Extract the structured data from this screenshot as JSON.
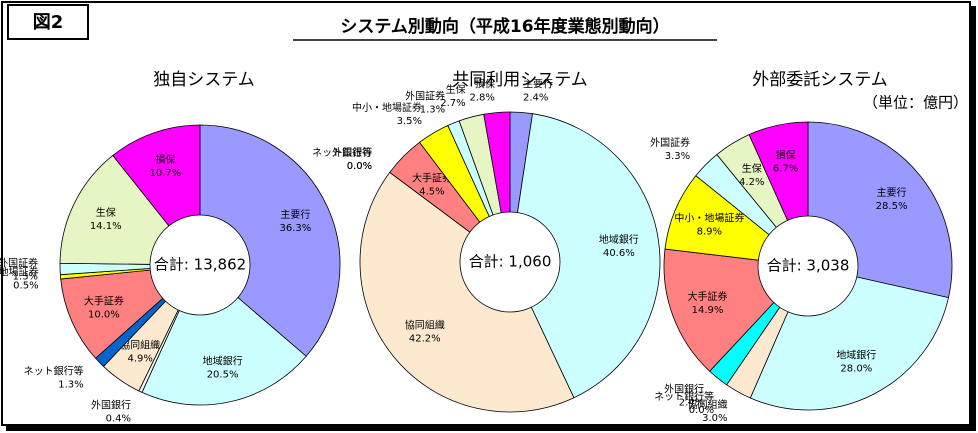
{
  "figure_label": "図2",
  "title": "システム別動向（平成16年度業態別動向）",
  "unit": "（単位：億円）",
  "chart_data": [
    {
      "type": "donut",
      "title": "独自システム",
      "center_label": "合計: 13,862",
      "categories": [
        "主要行",
        "地域銀行",
        "外国銀行",
        "協同組織",
        "ネット銀行等",
        "大手証券",
        "中小・地場証券",
        "外国証券",
        "生保",
        "損保"
      ],
      "values": [
        36.3,
        20.5,
        0.4,
        4.9,
        1.3,
        10.0,
        0.5,
        1.3,
        14.1,
        10.7
      ],
      "value_labels": [
        "36.3%",
        "20.5%",
        "0.4%",
        "4.9%",
        "1.3%",
        "10.0%",
        "0.5%",
        "1.3%",
        "14.1%",
        "10.7%"
      ],
      "colors": [
        "#9999ff",
        "#ccffff",
        "#f4f4f4",
        "#fde9d0",
        "#0066cc",
        "#ff8080",
        "#ffff00",
        "#ccffff",
        "#e6f5c4",
        "#ff00ff"
      ]
    },
    {
      "type": "donut",
      "title": "共同利用システム",
      "center_label": "合計: 1,060",
      "categories": [
        "主要行",
        "地域銀行",
        "協同組織",
        "外国銀行",
        "ネット銀行等",
        "大手証券",
        "中小・地場証券",
        "外国証券",
        "生保",
        "損保"
      ],
      "values": [
        2.4,
        40.6,
        42.2,
        0.0,
        0.0,
        4.5,
        3.5,
        1.3,
        2.7,
        2.8
      ],
      "value_labels": [
        "2.4%",
        "40.6%",
        "42.2%",
        "0.0%",
        "0.0%",
        "4.5%",
        "3.5%",
        "1.3%",
        "2.7%",
        "2.8%"
      ],
      "colors": [
        "#9999ff",
        "#ccffff",
        "#fde9d0",
        "#f4f4f4",
        "#0066cc",
        "#ff8080",
        "#ffff00",
        "#ccffff",
        "#e6f5c4",
        "#ff00ff"
      ]
    },
    {
      "type": "donut",
      "title": "外部委託システム",
      "center_label": "合計: 3,038",
      "categories": [
        "主要行",
        "地域銀行",
        "協同組織",
        "ネット銀行等",
        "外国銀行",
        "大手証券",
        "中小・地場証券",
        "外国証券",
        "生保",
        "損保"
      ],
      "values": [
        28.5,
        28.0,
        3.0,
        0.0,
        2.4,
        14.9,
        8.9,
        3.3,
        4.2,
        6.7
      ],
      "value_labels": [
        "28.5%",
        "28.0%",
        "3.0%",
        "0.0%",
        "2.4%",
        "14.9%",
        "8.9%",
        "3.3%",
        "4.2%",
        "6.7%"
      ],
      "colors": [
        "#9999ff",
        "#ccffff",
        "#fde9d0",
        "#0066cc",
        "#00ffff",
        "#ff8080",
        "#ffff00",
        "#ccffff",
        "#e6f5c4",
        "#ff00ff"
      ]
    }
  ]
}
